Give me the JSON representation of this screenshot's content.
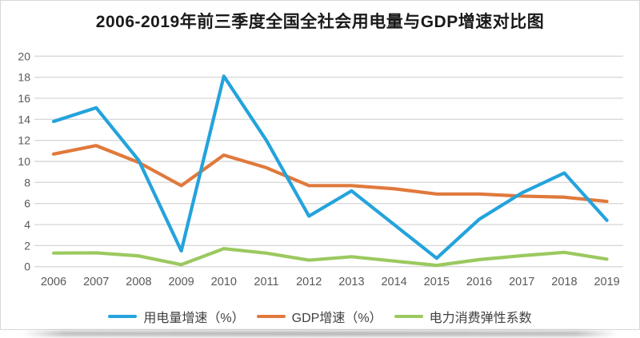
{
  "chart_data": {
    "type": "line",
    "title": "2006-2019年前三季度全国全社会用电量与GDP增速对比图",
    "categories": [
      "2006",
      "2007",
      "2008",
      "2009",
      "2010",
      "2011",
      "2012",
      "2013",
      "2014",
      "2015",
      "2016",
      "2017",
      "2018",
      "2019"
    ],
    "series": [
      {
        "name": "用电量增速（%）",
        "color": "#24A3DC",
        "values": [
          13.8,
          15.1,
          10.1,
          1.5,
          18.1,
          12.0,
          4.8,
          7.2,
          4.0,
          0.8,
          4.5,
          7.0,
          8.9,
          4.4
        ]
      },
      {
        "name": "GDP增速（%）",
        "color": "#E0793C",
        "values": [
          10.7,
          11.5,
          9.9,
          7.7,
          10.6,
          9.4,
          7.7,
          7.7,
          7.4,
          6.9,
          6.9,
          6.7,
          6.6,
          6.2
        ]
      },
      {
        "name": "电力消费弹性系数",
        "color": "#9BC95F",
        "values": [
          1.29,
          1.31,
          1.02,
          0.19,
          1.71,
          1.28,
          0.62,
          0.94,
          0.53,
          0.12,
          0.67,
          1.04,
          1.36,
          0.71
        ]
      }
    ],
    "xlabel": "",
    "ylabel": "",
    "ylim": [
      0,
      20
    ],
    "yticks": [
      0,
      2,
      4,
      6,
      8,
      10,
      12,
      14,
      16,
      18,
      20
    ],
    "grid": "horizontal-only",
    "legend_position": "bottom"
  },
  "colors": {
    "gridline": "#D9D9D9",
    "axis_text": "#595959",
    "legend_text": "#404040",
    "title_text": "#1A1A1A",
    "border": "#D8D8D8"
  }
}
